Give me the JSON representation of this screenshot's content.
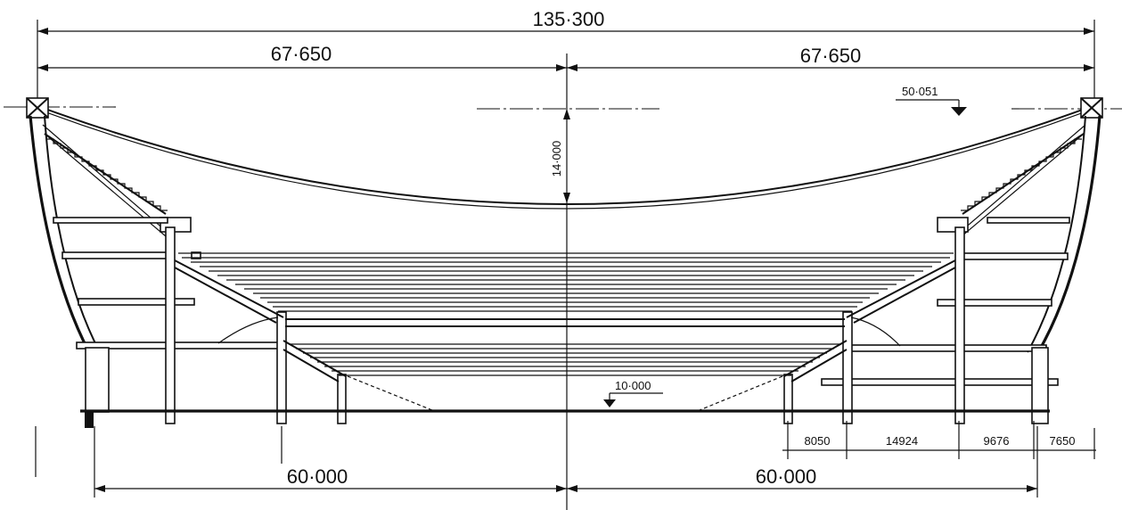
{
  "dimensions": {
    "overall_span": "135·300",
    "half_span_left": "67·650",
    "half_span_right": "67·650",
    "sag": "14·000",
    "base_left": "60·000",
    "base_right": "60·000",
    "top_elevation": "50·051",
    "floor_elevation": "10·000",
    "bay_1": "8050",
    "bay_2": "14924",
    "bay_3": "9676",
    "bay_4": "7650"
  },
  "colors": {
    "ink": "#111111",
    "paper": "#ffffff"
  }
}
